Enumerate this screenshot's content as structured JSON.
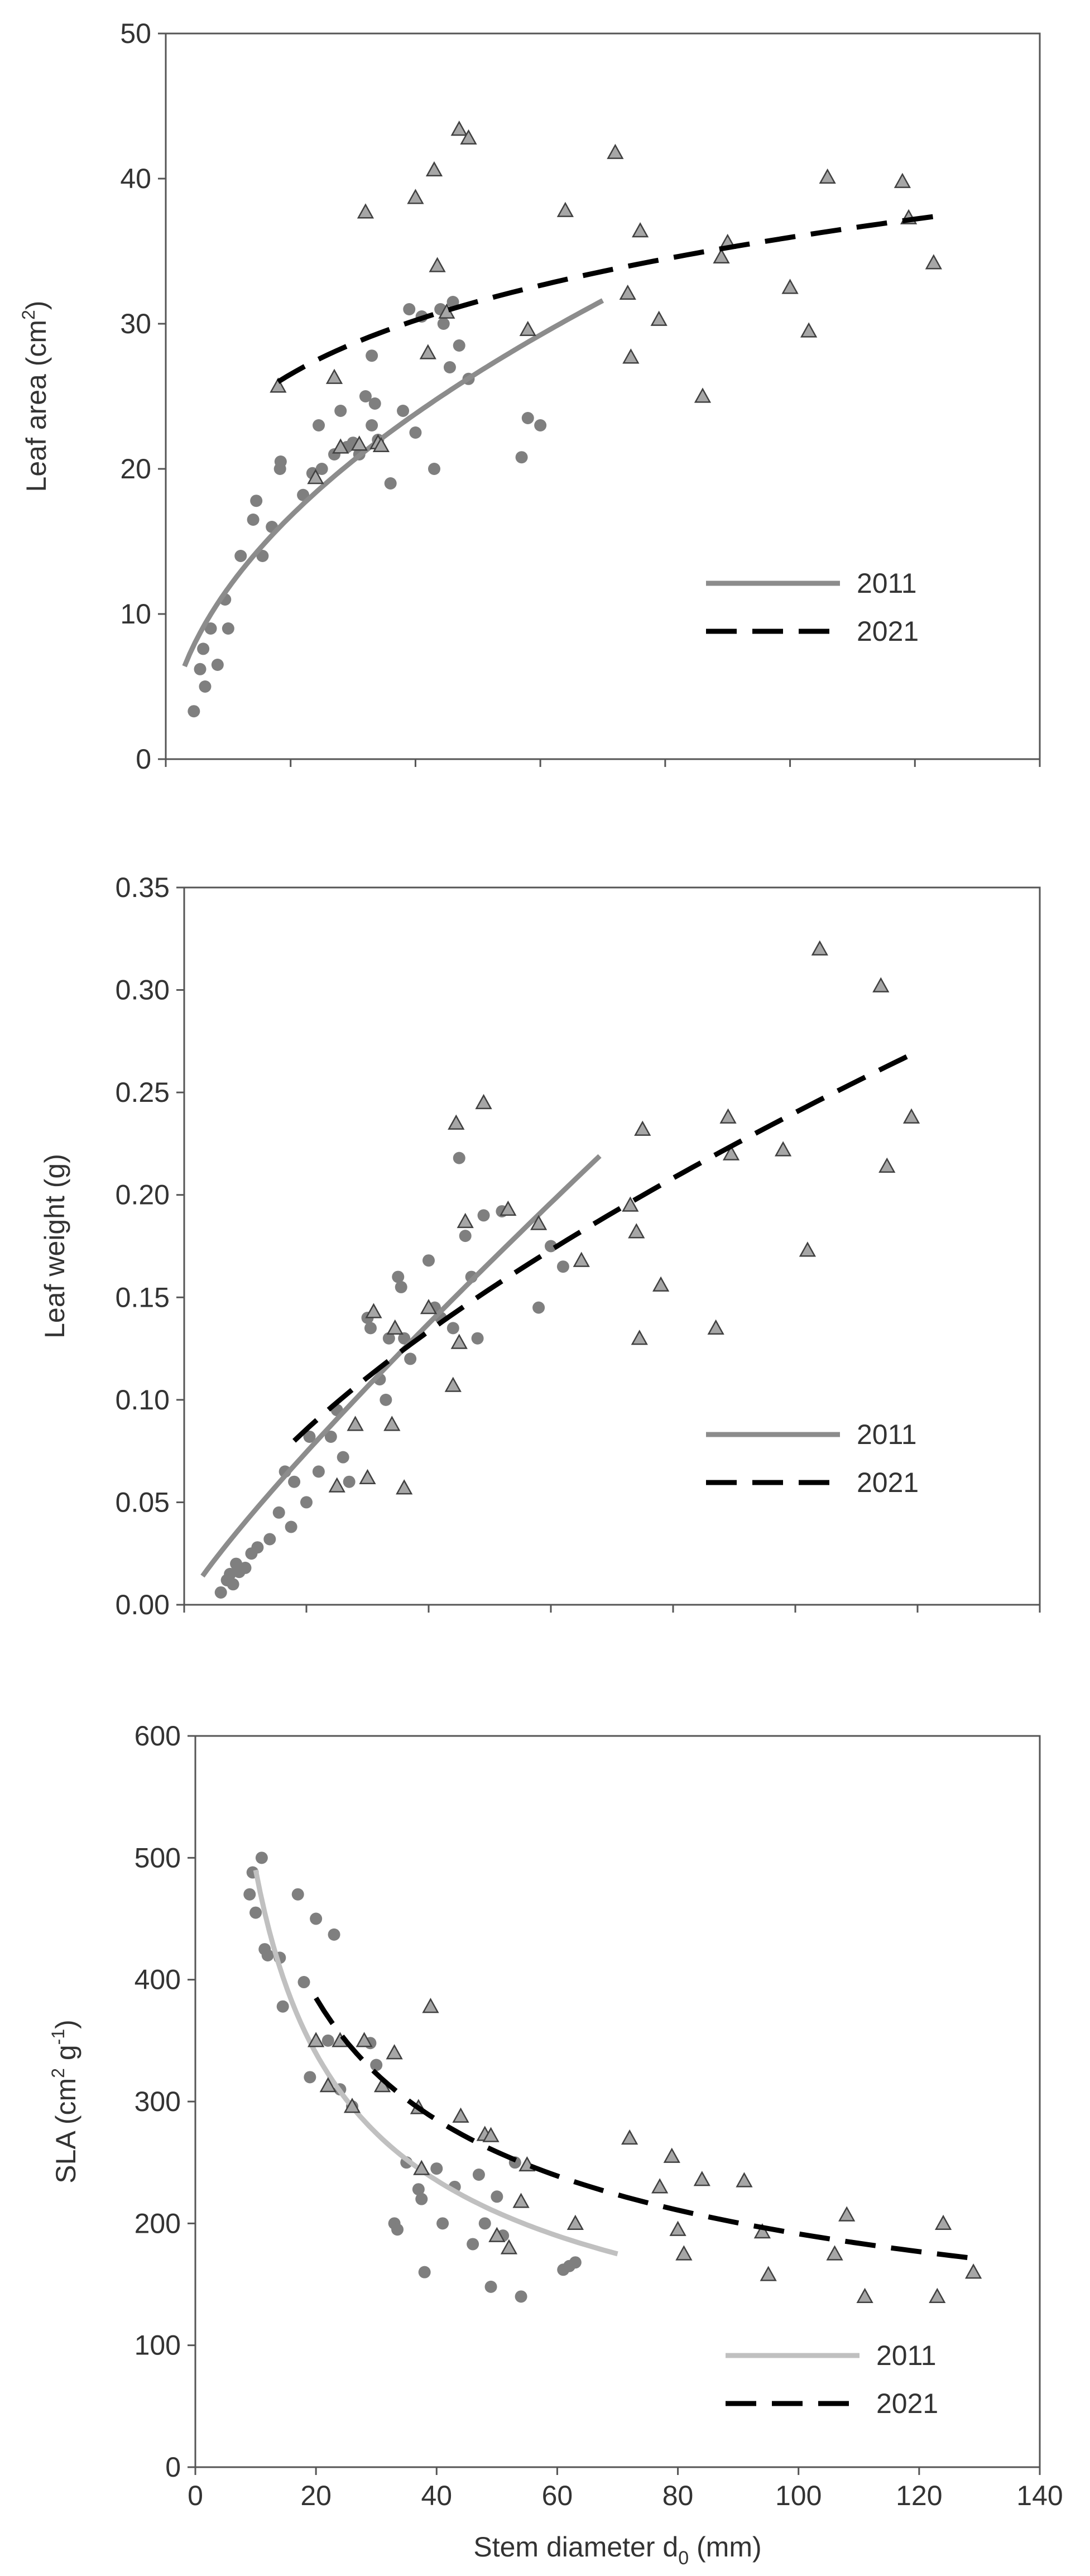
{
  "chart_data": [
    {
      "type": "scatter",
      "xlabel": "",
      "ylabel": "Leaf area (cm²)",
      "ylabel_main": "Leaf area (cm",
      "ylabel_sup": "2",
      "ylabel_end": ")",
      "xlim": [
        0,
        140
      ],
      "ylim": [
        0,
        50
      ],
      "yticks": [
        0,
        10,
        20,
        30,
        40,
        50
      ],
      "ytick_labels": [
        "0",
        "10",
        "20",
        "30",
        "40",
        "50"
      ],
      "xticks": [
        0,
        20,
        40,
        60,
        80,
        100,
        120,
        140
      ],
      "show_xtick_labels": false,
      "grid": false,
      "legend_position": "lower-right",
      "series": [
        {
          "name": "2011",
          "marker": "circle",
          "color": "#7f7f7f",
          "line_color": "#8c8c8c",
          "line_style": "solid",
          "points": [
            [
              4.5,
              3.3
            ],
            [
              5.5,
              6.2
            ],
            [
              6,
              7.6
            ],
            [
              6.3,
              5
            ],
            [
              7.2,
              9
            ],
            [
              8.3,
              6.5
            ],
            [
              9.5,
              11
            ],
            [
              10,
              9
            ],
            [
              12,
              14
            ],
            [
              14,
              16.5
            ],
            [
              14.5,
              17.8
            ],
            [
              15.5,
              14
            ],
            [
              17,
              16
            ],
            [
              18.3,
              20
            ],
            [
              18.4,
              20.5
            ],
            [
              22,
              18.2
            ],
            [
              23.5,
              19.7
            ],
            [
              24.5,
              23
            ],
            [
              25,
              20
            ],
            [
              27,
              21
            ],
            [
              28,
              24
            ],
            [
              29,
              21.5
            ],
            [
              30,
              21.8
            ],
            [
              31,
              21
            ],
            [
              32,
              25
            ],
            [
              33,
              27.8
            ],
            [
              33.5,
              24.5
            ],
            [
              33,
              23
            ],
            [
              34,
              22
            ],
            [
              36,
              19
            ],
            [
              38,
              24
            ],
            [
              39,
              31
            ],
            [
              40,
              22.5
            ],
            [
              41,
              30.5
            ],
            [
              43,
              20
            ],
            [
              44,
              31
            ],
            [
              44.5,
              30
            ],
            [
              45.5,
              27
            ],
            [
              46,
              31.5
            ],
            [
              47,
              28.5
            ],
            [
              48.5,
              26.2
            ],
            [
              57,
              20.8
            ],
            [
              58,
              23.5
            ],
            [
              60,
              23
            ]
          ],
          "fit_x": [
            3,
            70
          ],
          "fit_y": [
            6.4,
            31.6
          ]
        },
        {
          "name": "2021",
          "marker": "triangle",
          "color": "#a6a6a6",
          "line_color": "#000000",
          "line_style": "dashed",
          "points": [
            [
              18,
              25.7
            ],
            [
              24,
              19.4
            ],
            [
              27,
              26.3
            ],
            [
              28,
              21.5
            ],
            [
              31,
              21.7
            ],
            [
              32,
              37.7
            ],
            [
              34,
              21.8
            ],
            [
              34.5,
              21.6
            ],
            [
              40,
              38.7
            ],
            [
              42,
              28
            ],
            [
              43,
              40.6
            ],
            [
              43.5,
              34
            ],
            [
              45,
              30.8
            ],
            [
              47,
              43.4
            ],
            [
              48.5,
              42.8
            ],
            [
              58,
              29.6
            ],
            [
              64,
              37.8
            ],
            [
              72,
              41.8
            ],
            [
              74,
              32.1
            ],
            [
              74.5,
              27.7
            ],
            [
              76,
              36.4
            ],
            [
              79,
              30.3
            ],
            [
              86,
              25
            ],
            [
              89,
              34.6
            ],
            [
              90,
              35.6
            ],
            [
              100,
              32.5
            ],
            [
              103,
              29.5
            ],
            [
              106,
              40.1
            ],
            [
              118,
              39.8
            ],
            [
              119,
              37.3
            ],
            [
              123,
              34.2
            ]
          ],
          "fit_x": [
            18,
            125
          ],
          "fit_y": [
            26,
            37.5
          ]
        }
      ]
    },
    {
      "type": "scatter",
      "xlabel": "",
      "ylabel": "Leaf weight (g)",
      "ylabel_main": "Leaf weight (g)",
      "ylabel_sup": "",
      "ylabel_end": "",
      "xlim": [
        0,
        140
      ],
      "ylim": [
        0,
        0.35
      ],
      "yticks": [
        0,
        0.05,
        0.1,
        0.15,
        0.2,
        0.25,
        0.3,
        0.35
      ],
      "ytick_labels": [
        "0.00",
        "0.05",
        "0.10",
        "0.15",
        "0.20",
        "0.25",
        "0.30",
        "0.35"
      ],
      "xticks": [
        0,
        20,
        40,
        60,
        80,
        100,
        120,
        140
      ],
      "show_xtick_labels": false,
      "grid": false,
      "legend_position": "lower-right",
      "series": [
        {
          "name": "2011",
          "marker": "circle",
          "color": "#7f7f7f",
          "line_color": "#8c8c8c",
          "line_style": "solid",
          "points": [
            [
              6,
              0.006
            ],
            [
              7,
              0.012
            ],
            [
              7.5,
              0.015
            ],
            [
              8,
              0.01
            ],
            [
              8.5,
              0.02
            ],
            [
              9,
              0.016
            ],
            [
              10,
              0.018
            ],
            [
              11,
              0.025
            ],
            [
              12,
              0.028
            ],
            [
              14,
              0.032
            ],
            [
              15.5,
              0.045
            ],
            [
              16.5,
              0.065
            ],
            [
              17.5,
              0.038
            ],
            [
              18,
              0.06
            ],
            [
              20,
              0.05
            ],
            [
              20.5,
              0.082
            ],
            [
              22,
              0.065
            ],
            [
              24,
              0.082
            ],
            [
              25,
              0.095
            ],
            [
              26,
              0.072
            ],
            [
              27,
              0.06
            ],
            [
              30,
              0.14
            ],
            [
              30.5,
              0.135
            ],
            [
              32,
              0.11
            ],
            [
              33,
              0.1
            ],
            [
              33.5,
              0.13
            ],
            [
              35,
              0.16
            ],
            [
              35.5,
              0.155
            ],
            [
              36,
              0.13
            ],
            [
              37,
              0.12
            ],
            [
              40,
              0.168
            ],
            [
              41,
              0.145
            ],
            [
              42,
              0.14
            ],
            [
              44,
              0.135
            ],
            [
              45,
              0.218
            ],
            [
              46,
              0.18
            ],
            [
              47,
              0.16
            ],
            [
              48,
              0.13
            ],
            [
              49,
              0.19
            ],
            [
              52,
              0.192
            ],
            [
              58,
              0.145
            ],
            [
              60,
              0.175
            ],
            [
              62,
              0.165
            ]
          ],
          "fit_x": [
            3,
            68
          ],
          "fit_y": [
            0.014,
            0.219
          ]
        },
        {
          "name": "2021",
          "marker": "triangle",
          "color": "#a6a6a6",
          "line_color": "#000000",
          "line_style": "dashed",
          "points": [
            [
              25,
              0.058
            ],
            [
              28,
              0.088
            ],
            [
              30,
              0.062
            ],
            [
              31,
              0.143
            ],
            [
              34,
              0.088
            ],
            [
              36,
              0.057
            ],
            [
              34.5,
              0.135
            ],
            [
              40,
              0.145
            ],
            [
              44,
              0.107
            ],
            [
              44.5,
              0.235
            ],
            [
              45,
              0.128
            ],
            [
              46,
              0.187
            ],
            [
              49,
              0.245
            ],
            [
              53,
              0.193
            ],
            [
              58,
              0.186
            ],
            [
              65,
              0.168
            ],
            [
              73,
              0.195
            ],
            [
              74,
              0.182
            ],
            [
              74.5,
              0.13
            ],
            [
              75,
              0.232
            ],
            [
              78,
              0.156
            ],
            [
              87,
              0.135
            ],
            [
              89,
              0.238
            ],
            [
              89.5,
              0.22
            ],
            [
              98,
              0.222
            ],
            [
              102,
              0.173
            ],
            [
              104,
              0.32
            ],
            [
              114,
              0.302
            ],
            [
              115,
              0.214
            ],
            [
              119,
              0.238
            ]
          ],
          "fit_x": [
            18,
            120
          ],
          "fit_y": [
            0.08,
            0.27
          ]
        }
      ]
    },
    {
      "type": "scatter",
      "xlabel": "Stem diameter d₀ (mm)",
      "xlabel_main": "Stem diameter d",
      "xlabel_sub": "0",
      "xlabel_end": " (mm)",
      "ylabel": "SLA (cm² g⁻¹)",
      "ylabel_main": "SLA (cm",
      "ylabel_sup": "2",
      "ylabel_mid": " g",
      "ylabel_sup2": "-1",
      "ylabel_end": ")",
      "xlim": [
        0,
        140
      ],
      "ylim": [
        0,
        600
      ],
      "yticks": [
        0,
        100,
        200,
        300,
        400,
        500,
        600
      ],
      "ytick_labels": [
        "0",
        "100",
        "200",
        "300",
        "400",
        "500",
        "600"
      ],
      "xticks": [
        0,
        20,
        40,
        60,
        80,
        100,
        120,
        140
      ],
      "xtick_labels": [
        "0",
        "20",
        "40",
        "60",
        "80",
        "100",
        "120",
        "140"
      ],
      "show_xtick_labels": true,
      "grid": false,
      "legend_position": "lower-right",
      "series": [
        {
          "name": "2011",
          "marker": "circle",
          "color": "#7f7f7f",
          "line_color": "#c0c0c0",
          "line_style": "solid",
          "points": [
            [
              9,
              470
            ],
            [
              9.5,
              488
            ],
            [
              10,
              455
            ],
            [
              11,
              500
            ],
            [
              11.5,
              425
            ],
            [
              12,
              420
            ],
            [
              14,
              418
            ],
            [
              14.5,
              378
            ],
            [
              17,
              470
            ],
            [
              18,
              398
            ],
            [
              19,
              320
            ],
            [
              20,
              450
            ],
            [
              22,
              350
            ],
            [
              23,
              437
            ],
            [
              24,
              310
            ],
            [
              26,
              296
            ],
            [
              29,
              348
            ],
            [
              30,
              330
            ],
            [
              33,
              200
            ],
            [
              33.5,
              195
            ],
            [
              35,
              250
            ],
            [
              37,
              228
            ],
            [
              37.5,
              220
            ],
            [
              38,
              160
            ],
            [
              40,
              245
            ],
            [
              41,
              200
            ],
            [
              43,
              230
            ],
            [
              46,
              183
            ],
            [
              47,
              240
            ],
            [
              48,
              200
            ],
            [
              49,
              148
            ],
            [
              50,
              222
            ],
            [
              51,
              190
            ],
            [
              53,
              250
            ],
            [
              54,
              140
            ],
            [
              61,
              162
            ],
            [
              62,
              165
            ],
            [
              63,
              168
            ]
          ],
          "fit_x": [
            10,
            70
          ],
          "fit_y": [
            490,
            175
          ]
        },
        {
          "name": "2021",
          "marker": "triangle",
          "color": "#a6a6a6",
          "line_color": "#000000",
          "line_style": "dashed",
          "points": [
            [
              20,
              350
            ],
            [
              22,
              313
            ],
            [
              24,
              350
            ],
            [
              26,
              296
            ],
            [
              28,
              350
            ],
            [
              31,
              313
            ],
            [
              33,
              340
            ],
            [
              37,
              295
            ],
            [
              37.5,
              245
            ],
            [
              39,
              378
            ],
            [
              44,
              288
            ],
            [
              48,
              273
            ],
            [
              49,
              272
            ],
            [
              50,
              190
            ],
            [
              52,
              180
            ],
            [
              54,
              218
            ],
            [
              55,
              248
            ],
            [
              63,
              200
            ],
            [
              72,
              270
            ],
            [
              77,
              230
            ],
            [
              79,
              255
            ],
            [
              80,
              195
            ],
            [
              81,
              175
            ],
            [
              84,
              236
            ],
            [
              91,
              235
            ],
            [
              94,
              193
            ],
            [
              95,
              158
            ],
            [
              106,
              175
            ],
            [
              108,
              207
            ],
            [
              111,
              140
            ],
            [
              123,
              140
            ],
            [
              124,
              200
            ],
            [
              129,
              160
            ]
          ],
          "fit_x": [
            20,
            128
          ],
          "fit_y": [
            385,
            172
          ]
        }
      ]
    }
  ]
}
